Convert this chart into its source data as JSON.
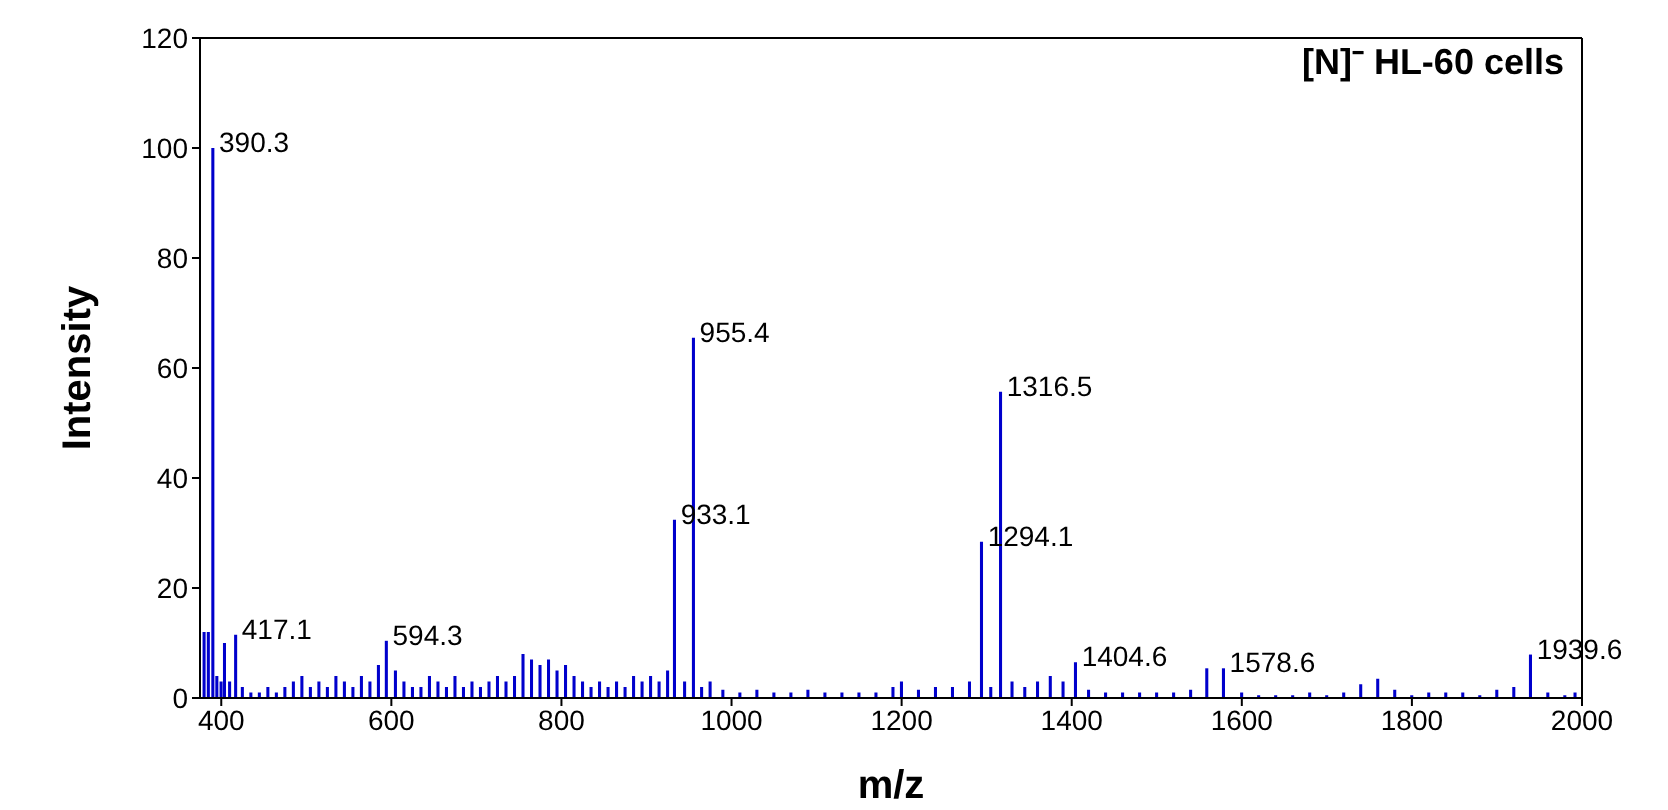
{
  "chart_data": {
    "type": "bar",
    "title": "[N]⁻ HL-60 cells",
    "xlabel": "m/z",
    "ylabel": "Intensity",
    "color": "#0000cc",
    "x": [
      380,
      385,
      390.3,
      395,
      400,
      404,
      410,
      417.1,
      425,
      435,
      445,
      455,
      465,
      475,
      485,
      495,
      505,
      515,
      525,
      535,
      545,
      555,
      565,
      575,
      585,
      594.3,
      605,
      615,
      625,
      635,
      645,
      655,
      665,
      675,
      685,
      695,
      705,
      715,
      725,
      735,
      745,
      755,
      765,
      775,
      785,
      795,
      805,
      815,
      825,
      835,
      845,
      855,
      865,
      875,
      885,
      895,
      905,
      915,
      925,
      933.1,
      945,
      955.4,
      965,
      975,
      990,
      1010,
      1030,
      1050,
      1070,
      1090,
      1110,
      1130,
      1150,
      1170,
      1190,
      1200,
      1220,
      1240,
      1260,
      1280,
      1294.1,
      1305,
      1316.5,
      1330,
      1345,
      1360,
      1375,
      1390,
      1404.6,
      1420,
      1440,
      1460,
      1480,
      1500,
      1520,
      1540,
      1559,
      1578.6,
      1600,
      1620,
      1640,
      1660,
      1680,
      1700,
      1720,
      1740,
      1760,
      1780,
      1800,
      1820,
      1840,
      1860,
      1880,
      1900,
      1920,
      1939.6,
      1960,
      1980,
      1992
    ],
    "values": [
      12,
      12,
      100,
      4,
      3,
      10,
      3,
      11.5,
      2,
      1,
      1,
      2,
      1,
      2,
      3,
      4,
      2,
      3,
      2,
      4,
      3,
      2,
      4,
      3,
      6,
      10.4,
      5,
      3,
      2,
      2,
      4,
      3,
      2,
      4,
      2,
      3,
      2,
      3,
      4,
      3,
      4,
      8,
      7,
      6,
      7,
      5,
      6,
      4,
      3,
      2,
      3,
      2,
      3,
      2,
      4,
      3,
      4,
      3,
      5,
      32.4,
      3,
      65.5,
      2,
      3,
      1.5,
      1,
      1.5,
      1,
      1,
      1.5,
      1,
      1,
      1,
      1,
      2,
      3,
      1.5,
      2,
      2,
      3,
      28.4,
      2,
      55.7,
      3,
      2,
      3,
      4,
      3,
      6.5,
      1.5,
      1,
      1,
      1,
      1,
      1,
      1.5,
      5.4,
      5.4,
      1,
      0.5,
      0.5,
      0.5,
      1,
      0.5,
      1,
      2.5,
      3.5,
      1.5,
      0.5,
      1,
      1,
      1,
      0.5,
      1.5,
      2,
      7.9,
      1,
      0.5,
      1
    ],
    "xlim": [
      375,
      2000
    ],
    "xticks": [
      400,
      600,
      800,
      1000,
      1200,
      1400,
      1600,
      1800,
      2000
    ],
    "ylim": [
      0,
      120
    ],
    "yticks": [
      0,
      20,
      40,
      60,
      80,
      100,
      120
    ],
    "grid": false,
    "annotations": [
      {
        "text": "390.3",
        "x": 390.3,
        "y": 100
      },
      {
        "text": "417.1",
        "x": 417.1,
        "y": 11.5
      },
      {
        "text": "594.3",
        "x": 594.3,
        "y": 10.4
      },
      {
        "text": "933.1",
        "x": 933.1,
        "y": 32.4
      },
      {
        "text": "955.4",
        "x": 955.4,
        "y": 65.5
      },
      {
        "text": "1294.1",
        "x": 1294.1,
        "y": 28.4
      },
      {
        "text": "1316.5",
        "x": 1316.5,
        "y": 55.7
      },
      {
        "text": "1404.6",
        "x": 1404.6,
        "y": 6.5
      },
      {
        "text": "1578.6",
        "x": 1578.6,
        "y": 5.4
      },
      {
        "text": "1939.6",
        "x": 1939.6,
        "y": 7.9
      }
    ]
  }
}
